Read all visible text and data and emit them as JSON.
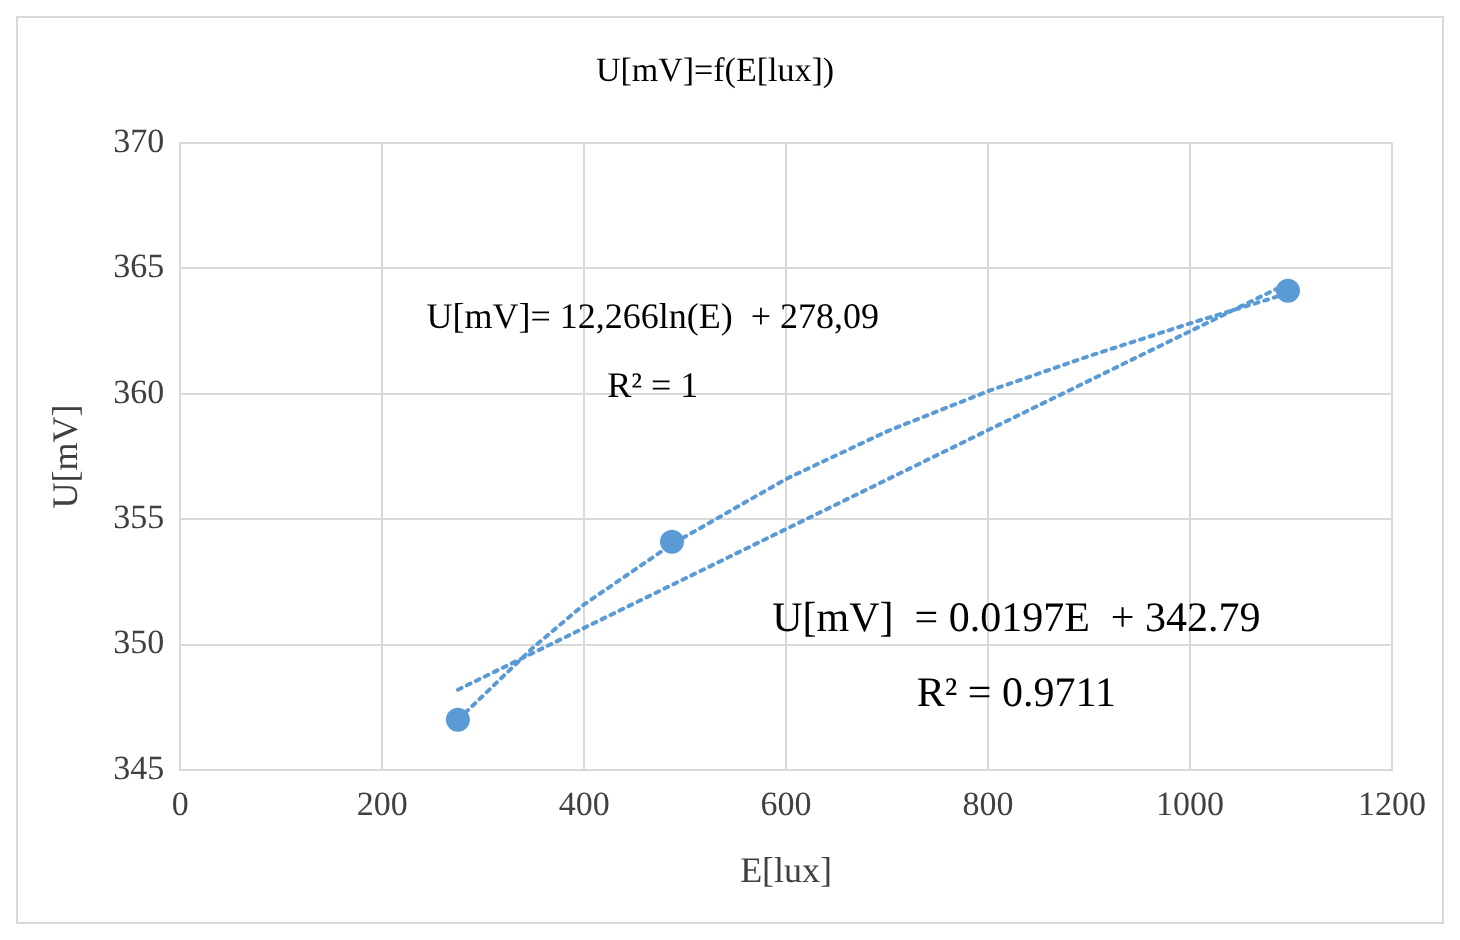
{
  "chart_data": {
    "type": "scatter",
    "title": "U[mV]=f(E[lux])",
    "xlabel": "E[lux]",
    "ylabel": "U[mV]",
    "xlim": [
      0,
      1200
    ],
    "xticks": [
      0,
      200,
      400,
      600,
      800,
      1000,
      1200
    ],
    "ylim": [
      345,
      370
    ],
    "yticks": [
      345,
      350,
      355,
      360,
      365,
      370
    ],
    "grid": true,
    "legend": false,
    "series": [
      {
        "type": "line",
        "color": "#5b9bd5",
        "marker": "none",
        "line_style": "dotted",
        "x": [
          275,
          350,
          400,
          487,
          600,
          700,
          800,
          900,
          1000,
          1097
        ],
        "values": [
          347.0,
          349.9,
          351.6,
          354.0,
          356.6,
          358.5,
          360.1,
          361.5,
          362.8,
          364.0
        ]
      },
      {
        "type": "line",
        "color": "#5b9bd5",
        "marker": "none",
        "line_style": "dotted",
        "x": [
          275,
          1097
        ],
        "values": [
          348.2,
          364.4
        ]
      },
      {
        "type": "scatter",
        "color": "#5b9bd5",
        "marker": "circle",
        "x": [
          275,
          487,
          1097
        ],
        "values": [
          347.0,
          354.1,
          364.1
        ]
      }
    ],
    "annotations": [
      "U[mV]= 12,266ln(E)  + 278,09",
      "R² = 1",
      "U[mV]  = 0.0197E  + 342.79",
      "R² = 0.9711"
    ]
  }
}
